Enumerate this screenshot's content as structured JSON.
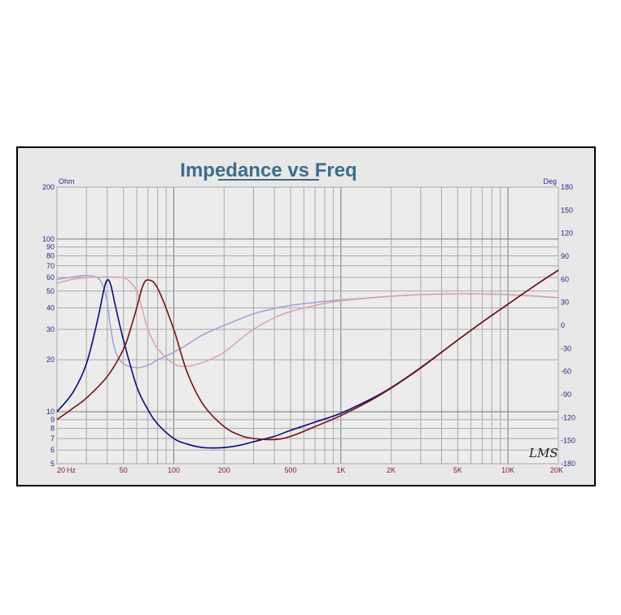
{
  "chart_data": {
    "type": "line",
    "title": "Impedance vs Freq",
    "x_unit": "Hz",
    "y_left_unit": "Ohm",
    "y_right_unit": "Deg",
    "x_scale": "log",
    "y_left_scale": "log",
    "xlim": [
      20,
      20000
    ],
    "ylim_left": [
      5,
      200
    ],
    "ylim_right": [
      -180,
      180
    ],
    "grid": true,
    "x_ticks": [
      {
        "value": 20,
        "label": "20"
      },
      {
        "value": 50,
        "label": "50"
      },
      {
        "value": 100,
        "label": "100"
      },
      {
        "value": 200,
        "label": "200"
      },
      {
        "value": 500,
        "label": "500"
      },
      {
        "value": 1000,
        "label": "1K"
      },
      {
        "value": 2000,
        "label": "2K"
      },
      {
        "value": 5000,
        "label": "5K"
      },
      {
        "value": 10000,
        "label": "10K"
      },
      {
        "value": 20000,
        "label": "20K"
      }
    ],
    "y_left_ticks": [
      {
        "value": 200,
        "label": "200"
      },
      {
        "value": 100,
        "label": "100"
      },
      {
        "value": 90,
        "label": "90"
      },
      {
        "value": 80,
        "label": "80"
      },
      {
        "value": 70,
        "label": "70"
      },
      {
        "value": 60,
        "label": "60"
      },
      {
        "value": 50,
        "label": "50"
      },
      {
        "value": 40,
        "label": "40"
      },
      {
        "value": 30,
        "label": "30"
      },
      {
        "value": 20,
        "label": "20"
      },
      {
        "value": 10,
        "label": "10"
      },
      {
        "value": 9,
        "label": "9"
      },
      {
        "value": 8,
        "label": "8"
      },
      {
        "value": 7,
        "label": "7"
      },
      {
        "value": 6,
        "label": "6"
      },
      {
        "value": 5,
        "label": "5"
      }
    ],
    "y_right_ticks": [
      {
        "value": 180,
        "label": "180"
      },
      {
        "value": 150,
        "label": "150"
      },
      {
        "value": 120,
        "label": "120"
      },
      {
        "value": 90,
        "label": "90"
      },
      {
        "value": 60,
        "label": "60"
      },
      {
        "value": 30,
        "label": "30"
      },
      {
        "value": 0,
        "label": "0"
      },
      {
        "value": -30,
        "label": "-30"
      },
      {
        "value": -60,
        "label": "-60"
      },
      {
        "value": -90,
        "label": "-90"
      },
      {
        "value": -120,
        "label": "-120"
      },
      {
        "value": -150,
        "label": "-150"
      },
      {
        "value": -180,
        "label": "-180"
      }
    ],
    "series": [
      {
        "axis": "left",
        "color": "#0a0a80",
        "x": [
          20,
          25,
          30,
          35,
          38,
          40,
          42,
          45,
          50,
          60,
          70,
          80,
          100,
          120,
          150,
          200,
          250,
          300,
          400,
          500,
          700,
          1000,
          1500,
          2000,
          3000,
          5000,
          7000,
          10000,
          15000,
          20000
        ],
        "y": [
          10,
          13,
          19,
          34,
          50,
          58,
          54,
          40,
          26,
          14,
          10.3,
          8.5,
          7.0,
          6.5,
          6.2,
          6.2,
          6.4,
          6.7,
          7.2,
          7.8,
          8.7,
          9.8,
          11.8,
          13.8,
          18,
          26,
          33,
          42,
          55,
          66
        ]
      },
      {
        "axis": "left",
        "color": "#7a1010",
        "x": [
          20,
          25,
          30,
          40,
          50,
          55,
          60,
          65,
          70,
          80,
          100,
          120,
          150,
          200,
          250,
          300,
          400,
          500,
          700,
          1000,
          1500,
          2000,
          3000,
          5000,
          7000,
          10000,
          15000,
          20000
        ],
        "y": [
          9,
          10.5,
          12,
          16,
          23,
          30,
          40,
          53,
          58,
          52,
          30,
          17,
          11,
          8.2,
          7.3,
          7.0,
          6.9,
          7.2,
          8.2,
          9.5,
          11.6,
          13.7,
          17.9,
          26,
          33,
          42,
          55,
          66
        ]
      },
      {
        "axis": "right",
        "color": "#9fa0d8",
        "x": [
          20,
          25,
          30,
          35,
          38,
          40,
          42,
          45,
          50,
          60,
          70,
          80,
          100,
          120,
          150,
          200,
          300,
          400,
          500,
          700,
          1000,
          2000,
          3000,
          5000,
          7000,
          10000,
          15000,
          20000
        ],
        "y": [
          60,
          63,
          65,
          62,
          50,
          30,
          -5,
          -35,
          -50,
          -55,
          -52,
          -45,
          -35,
          -25,
          -12,
          0,
          15,
          22,
          26,
          30,
          33,
          38,
          40,
          41,
          41,
          40,
          38,
          36
        ]
      },
      {
        "axis": "right",
        "color": "#dba4a8",
        "x": [
          20,
          25,
          30,
          40,
          50,
          55,
          60,
          65,
          70,
          80,
          100,
          120,
          150,
          200,
          250,
          300,
          400,
          500,
          700,
          1000,
          2000,
          3000,
          5000,
          10000,
          20000
        ],
        "y": [
          55,
          60,
          62,
          63,
          62,
          56,
          45,
          20,
          -5,
          -30,
          -50,
          -53,
          -48,
          -35,
          -18,
          -5,
          10,
          18,
          26,
          32,
          38,
          40,
          41,
          40,
          36
        ]
      }
    ],
    "annotation": "LMS"
  }
}
